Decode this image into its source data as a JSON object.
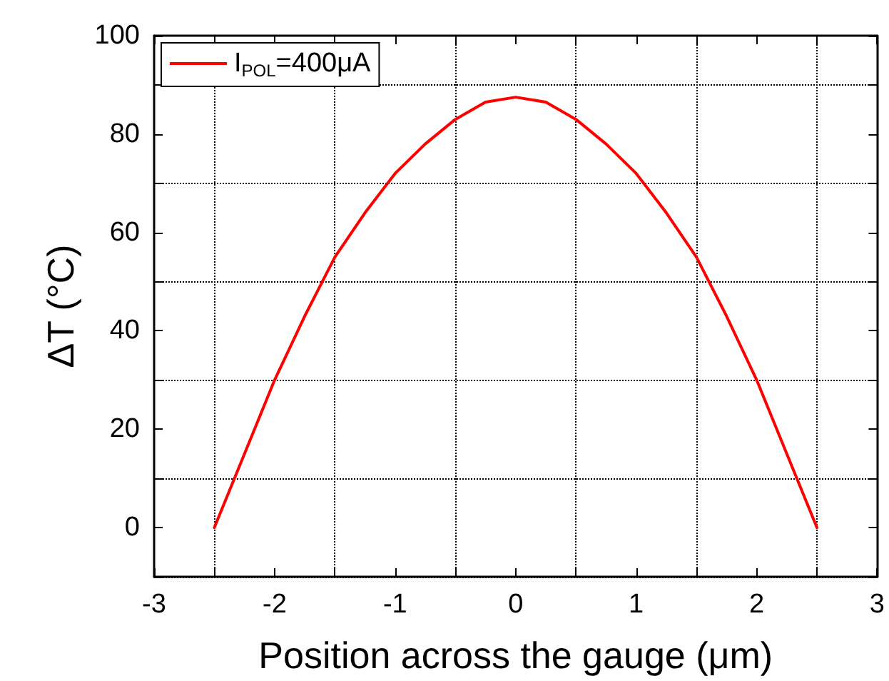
{
  "chart_data": {
    "type": "line",
    "xlabel": "Position across the gauge (μm)",
    "ylabel": "ΔT (°C)",
    "xlim": [
      -3,
      3
    ],
    "xticks": [
      -3,
      {
        "value": -2.5,
        "label": null
      },
      -2,
      {
        "value": -1.5,
        "label": null
      },
      -1,
      {
        "value": -0.5,
        "label": null
      },
      0,
      {
        "value": 0.5,
        "label": null
      },
      1,
      {
        "value": 1.5,
        "label": null
      },
      2,
      {
        "value": 2.5,
        "label": null
      },
      3
    ],
    "ylim": [
      -10,
      100
    ],
    "yticks": [
      {
        "value": -10,
        "label": null
      },
      0,
      {
        "value": 10,
        "label": null
      },
      20,
      {
        "value": 30,
        "label": null
      },
      40,
      {
        "value": 50,
        "label": null
      },
      60,
      {
        "value": 70,
        "label": null
      },
      80,
      {
        "value": 90,
        "label": null
      },
      100
    ],
    "grid": true,
    "legend": "top left",
    "line_style": "solid",
    "marker": "none",
    "x": [
      -2.5,
      -2.25,
      -2,
      -1.75,
      -1.5,
      -1.25,
      -1,
      -0.75,
      -0.5,
      -0.25,
      0,
      0.25,
      0.5,
      0.75,
      1,
      1.25,
      1.5,
      1.75,
      2,
      2.25,
      2.5
    ],
    "series": [
      {
        "name": "I$_{POL}$=400μA",
        "color": "#ff0000",
        "values": [
          0,
          15,
          30,
          43,
          55,
          64,
          72,
          78,
          83,
          86.5,
          87.5,
          86.5,
          83,
          78,
          72,
          64,
          55,
          43,
          30,
          15,
          0
        ]
      }
    ]
  }
}
